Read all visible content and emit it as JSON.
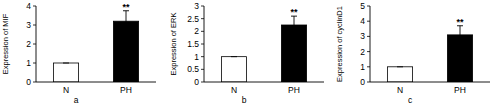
{
  "chart_data": [
    {
      "type": "bar",
      "title": "a",
      "y_label": "Expression of MIF",
      "categories": [
        "N",
        "PH"
      ],
      "values": [
        1,
        3.2
      ],
      "errors": [
        0,
        0.55
      ],
      "colors": [
        "#ffffff",
        "#000000"
      ],
      "ylim": [
        0,
        4
      ],
      "yticks": [
        0,
        1,
        2,
        3,
        4
      ],
      "annotations": [
        {
          "text": "**",
          "category": "PH"
        }
      ]
    },
    {
      "type": "bar",
      "title": "b",
      "y_label": "Expression of ERK",
      "categories": [
        "N",
        "PH"
      ],
      "values": [
        1,
        2.25
      ],
      "errors": [
        0,
        0.35
      ],
      "colors": [
        "#ffffff",
        "#000000"
      ],
      "ylim": [
        0,
        3
      ],
      "yticks": [
        0,
        0.5,
        1,
        1.5,
        2,
        2.5,
        3
      ],
      "annotations": [
        {
          "text": "**",
          "category": "PH"
        }
      ]
    },
    {
      "type": "bar",
      "title": "c",
      "y_label": "Expression of cyclinD1",
      "categories": [
        "N",
        "PH"
      ],
      "values": [
        1,
        3.1
      ],
      "errors": [
        0,
        0.6
      ],
      "colors": [
        "#ffffff",
        "#000000"
      ],
      "ylim": [
        0,
        5
      ],
      "yticks": [
        0,
        1,
        2,
        3,
        4,
        5
      ],
      "annotations": [
        {
          "text": "**",
          "category": "PH"
        }
      ]
    }
  ]
}
